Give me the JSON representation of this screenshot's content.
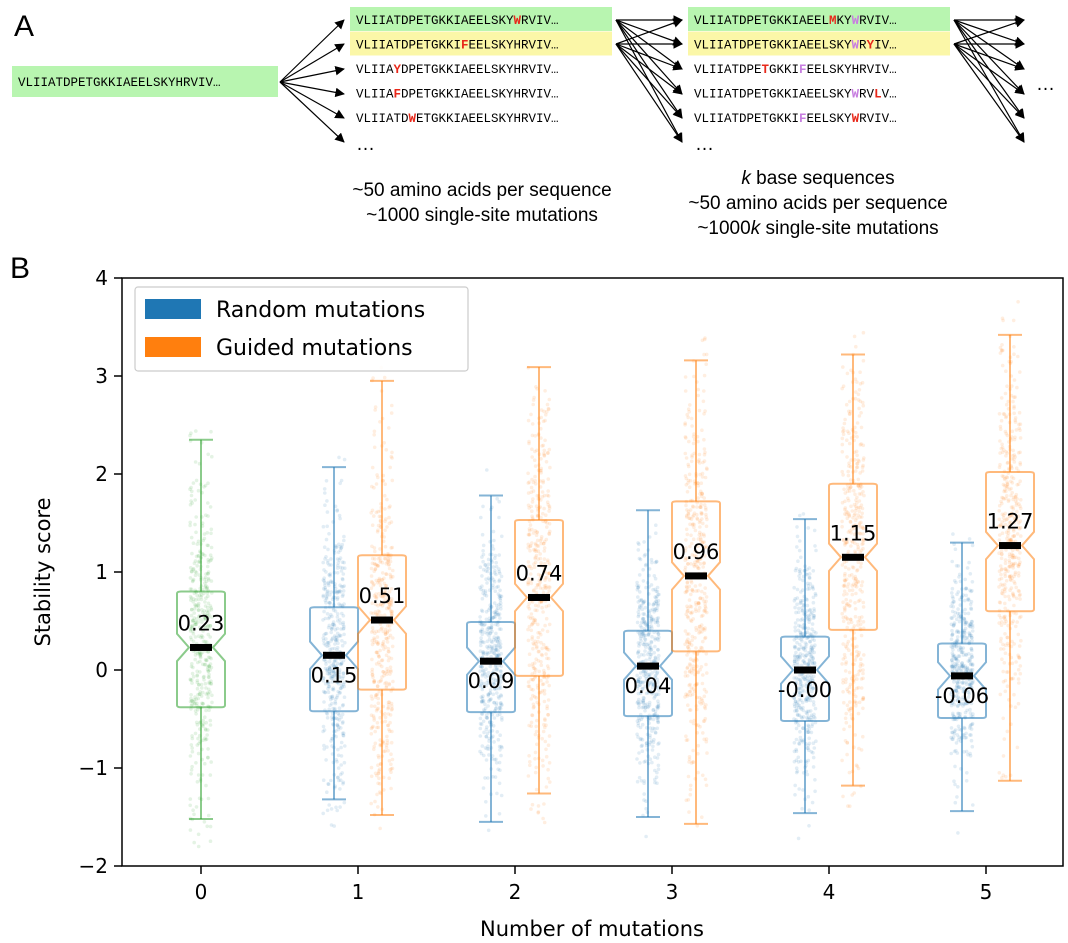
{
  "panel_a": {
    "letter": "A",
    "base_sequence": "VLIIATDPETGKKIAEELSKYHRVIV…",
    "ellipsis": "…",
    "ellipsis_right": "…",
    "column1": [
      {
        "segments": [
          [
            "VLIIATDPETGKKIAEELSKY",
            "n"
          ],
          [
            "W",
            "r"
          ],
          [
            "RVIV…",
            "n"
          ]
        ],
        "highlight": "green"
      },
      {
        "segments": [
          [
            "VLIIATDPETGKKI",
            "n"
          ],
          [
            "F",
            "r"
          ],
          [
            "EELSKYHRVIV…",
            "n"
          ]
        ],
        "highlight": "yellow"
      },
      {
        "segments": [
          [
            "VLIIA",
            "n"
          ],
          [
            "Y",
            "r"
          ],
          [
            "DPETGKKIAEELSKYHRVIV…",
            "n"
          ]
        ],
        "highlight": ""
      },
      {
        "segments": [
          [
            "VLIIA",
            "n"
          ],
          [
            "F",
            "r"
          ],
          [
            "DPETGKKIAEELSKYHRVIV…",
            "n"
          ]
        ],
        "highlight": ""
      },
      {
        "segments": [
          [
            "VLIIATD",
            "n"
          ],
          [
            "W",
            "r"
          ],
          [
            "ETGKKIAEELSKYHRVIV…",
            "n"
          ]
        ],
        "highlight": ""
      }
    ],
    "column2": [
      {
        "segments": [
          [
            "VLIIATDPETGKKIAEEL",
            "n"
          ],
          [
            "M",
            "r"
          ],
          [
            "KY",
            "n"
          ],
          [
            "W",
            "p"
          ],
          [
            "RVIV…",
            "n"
          ]
        ],
        "highlight": "green"
      },
      {
        "segments": [
          [
            "VLIIATDPETGKKIAEELSKY",
            "n"
          ],
          [
            "W",
            "p"
          ],
          [
            "R",
            "n"
          ],
          [
            "Y",
            "r"
          ],
          [
            "IV…",
            "n"
          ]
        ],
        "highlight": "yellow"
      },
      {
        "segments": [
          [
            "VLIIATDPE",
            "n"
          ],
          [
            "T",
            "r"
          ],
          [
            "GKKI",
            "n"
          ],
          [
            "F",
            "p"
          ],
          [
            "EELSKYHRVIV…",
            "n"
          ]
        ],
        "highlight": ""
      },
      {
        "segments": [
          [
            "VLIIATDPETGKKIAEELSKY",
            "n"
          ],
          [
            "W",
            "p"
          ],
          [
            "RV",
            "n"
          ],
          [
            "L",
            "r"
          ],
          [
            "V…",
            "n"
          ]
        ],
        "highlight": ""
      },
      {
        "segments": [
          [
            "VLIIATDPETGKKI",
            "n"
          ],
          [
            "F",
            "p"
          ],
          [
            "EELSKY",
            "n"
          ],
          [
            "W",
            "r"
          ],
          [
            "RVIV…",
            "n"
          ]
        ],
        "highlight": ""
      }
    ],
    "caption1": [
      "~50 amino acids per sequence",
      "~1000 single-site mutations"
    ],
    "caption2_line1_italic": "k",
    "caption2_line1_rest": " base sequences",
    "caption2_line2": "~50 amino acids per sequence",
    "caption2_line3_pre": "~1000",
    "caption2_line3_italic": "k",
    "caption2_line3_post": " single-site mutations"
  },
  "colors": {
    "random": "#1f77b4",
    "guided": "#ff7f0e",
    "base": "#2ca02c",
    "highlight_green": "#b8f5b0",
    "highlight_yellow": "#fbf7a8",
    "mut_red": "#e8281a",
    "mut_purple": "#c77ee0"
  },
  "chart_data": {
    "type": "boxplot",
    "panel_letter": "B",
    "xlabel": "Number of mutations",
    "ylabel": "Stability score",
    "ylim": [
      -2,
      4
    ],
    "yticks": [
      "−2",
      "−1",
      "0",
      "1",
      "2",
      "3",
      "4"
    ],
    "xticks": [
      "0",
      "1",
      "2",
      "3",
      "4",
      "5"
    ],
    "legend_position": "top-left",
    "series": [
      {
        "name": "Random mutations",
        "color": "#1f77b4",
        "boxes": [
          {
            "x": 1,
            "median": 0.15,
            "median_label": "0.15",
            "q1": -0.4,
            "q3": 0.62,
            "whisker_low": -1.32,
            "whisker_high": 2.07
          },
          {
            "x": 2,
            "median": 0.09,
            "median_label": "0.09",
            "q1": -0.41,
            "q3": 0.47,
            "whisker_low": -1.55,
            "whisker_high": 1.78
          },
          {
            "x": 3,
            "median": 0.04,
            "median_label": "0.04",
            "q1": -0.45,
            "q3": 0.38,
            "whisker_low": -1.5,
            "whisker_high": 1.63
          },
          {
            "x": 4,
            "median": 0.0,
            "median_label": "-0.00",
            "q1": -0.5,
            "q3": 0.32,
            "whisker_low": -1.46,
            "whisker_high": 1.54
          },
          {
            "x": 5,
            "median": -0.06,
            "median_label": "-0.06",
            "q1": -0.47,
            "q3": 0.25,
            "whisker_low": -1.44,
            "whisker_high": 1.3
          }
        ]
      },
      {
        "name": "Guided mutations",
        "color": "#ff7f0e",
        "boxes": [
          {
            "x": 1,
            "median": 0.51,
            "median_label": "0.51",
            "q1": -0.18,
            "q3": 1.15,
            "whisker_low": -1.48,
            "whisker_high": 2.95
          },
          {
            "x": 2,
            "median": 0.74,
            "median_label": "0.74",
            "q1": -0.04,
            "q3": 1.51,
            "whisker_low": -1.26,
            "whisker_high": 3.09
          },
          {
            "x": 3,
            "median": 0.96,
            "median_label": "0.96",
            "q1": 0.21,
            "q3": 1.7,
            "whisker_low": -1.57,
            "whisker_high": 3.16
          },
          {
            "x": 4,
            "median": 1.15,
            "median_label": "1.15",
            "q1": 0.43,
            "q3": 1.88,
            "whisker_low": -1.18,
            "whisker_high": 3.22
          },
          {
            "x": 5,
            "median": 1.27,
            "median_label": "1.27",
            "q1": 0.62,
            "q3": 2.0,
            "whisker_low": -1.13,
            "whisker_high": 3.42
          }
        ]
      },
      {
        "name": "",
        "color": "#2ca02c",
        "boxes": [
          {
            "x": 0,
            "median": 0.23,
            "median_label": "0.23",
            "q1": -0.36,
            "q3": 0.78,
            "whisker_low": -1.52,
            "whisker_high": 2.35
          }
        ]
      }
    ]
  }
}
